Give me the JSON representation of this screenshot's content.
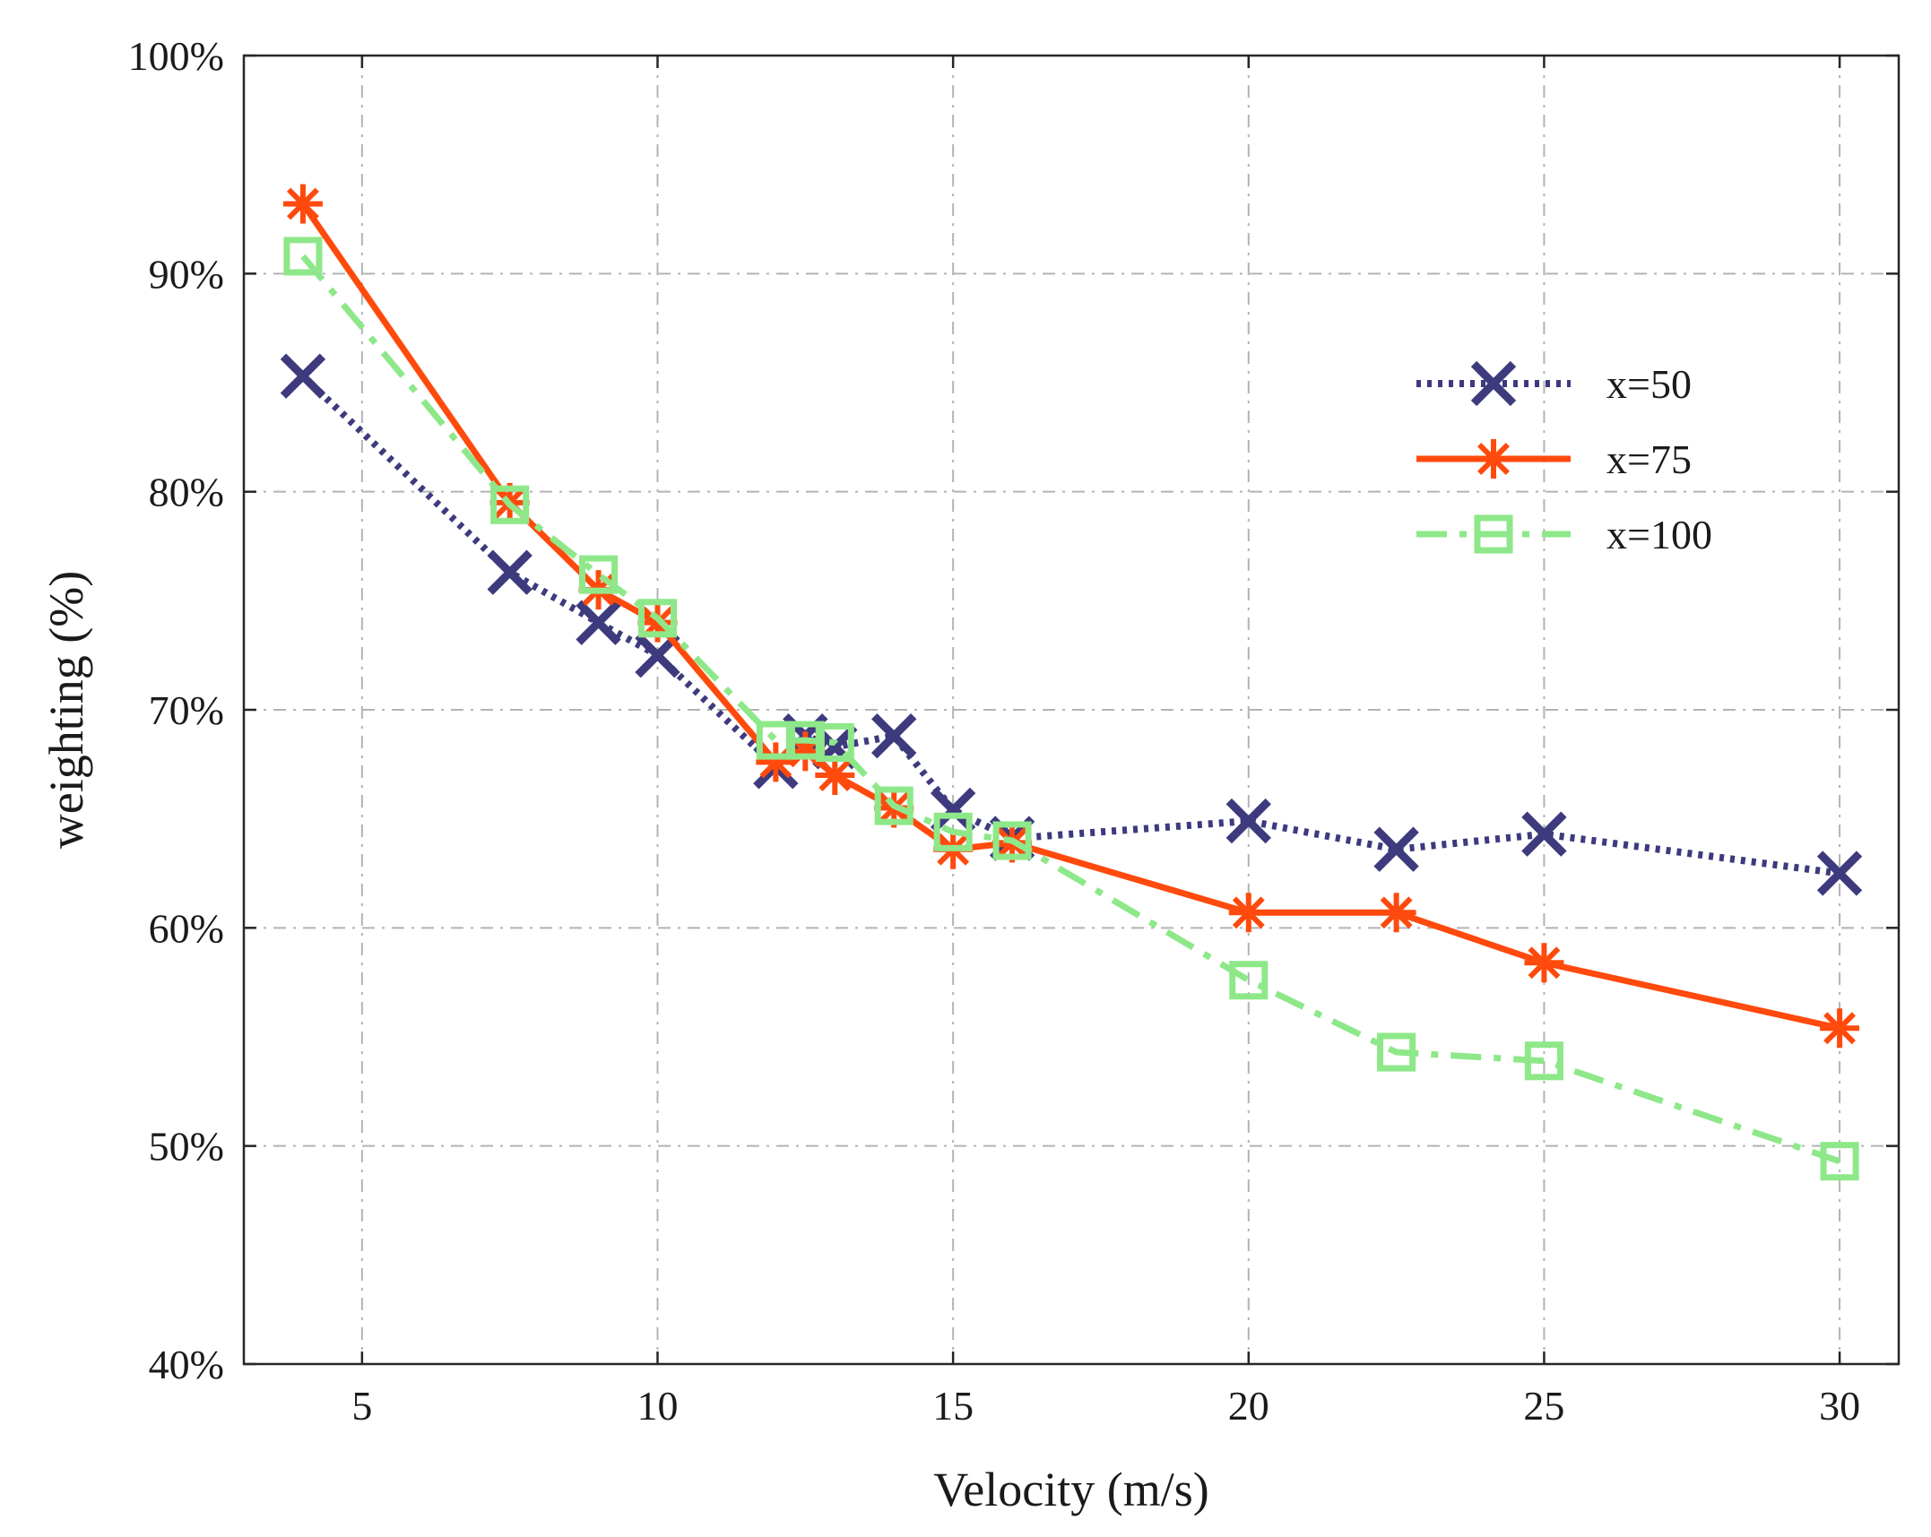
{
  "chart_data": {
    "type": "line",
    "title": "",
    "xlabel": "Velocity (m/s)",
    "ylabel": "weighting (%)",
    "xlim": [
      3,
      31
    ],
    "ylim": [
      40,
      100
    ],
    "xticks": [
      5,
      10,
      15,
      20,
      25,
      30
    ],
    "xtick_labels": [
      "5",
      "10",
      "15",
      "20",
      "25",
      "30"
    ],
    "yticks": [
      40,
      50,
      60,
      70,
      80,
      90,
      100
    ],
    "ytick_labels": [
      "40%",
      "50%",
      "60%",
      "70%",
      "80%",
      "90%",
      "100%"
    ],
    "grid": true,
    "legend_position": "right-upper",
    "series": [
      {
        "name": "x=50",
        "color": "#3d3a7e",
        "line_style": "dotted",
        "marker": "x",
        "x": [
          4,
          7.5,
          9,
          10,
          12,
          12.5,
          13,
          14,
          15,
          16,
          20,
          22.5,
          25,
          30
        ],
        "y": [
          85.3,
          76.3,
          74.0,
          72.5,
          67.4,
          68.8,
          68.3,
          68.8,
          65.4,
          64.1,
          64.9,
          63.6,
          64.3,
          62.5
        ]
      },
      {
        "name": "x=75",
        "color": "#ff4a0d",
        "line_style": "solid",
        "marker": "asterisk",
        "x": [
          4,
          7.5,
          9,
          10,
          12,
          12.5,
          13,
          14,
          15,
          16,
          20,
          22.5,
          25,
          30
        ],
        "y": [
          93.2,
          79.5,
          75.5,
          74.0,
          67.6,
          68.1,
          67.0,
          65.5,
          63.6,
          63.9,
          60.7,
          60.7,
          58.4,
          55.4
        ]
      },
      {
        "name": "x=100",
        "color": "#8ee889",
        "line_style": "dashdot",
        "marker": "square",
        "x": [
          4,
          7.5,
          9,
          10,
          12,
          12.5,
          13,
          14,
          15,
          16,
          20,
          22.5,
          25,
          30
        ],
        "y": [
          90.8,
          79.4,
          76.2,
          74.2,
          68.6,
          68.6,
          68.5,
          65.6,
          64.4,
          64.0,
          57.6,
          54.3,
          53.9,
          49.3
        ]
      }
    ]
  }
}
